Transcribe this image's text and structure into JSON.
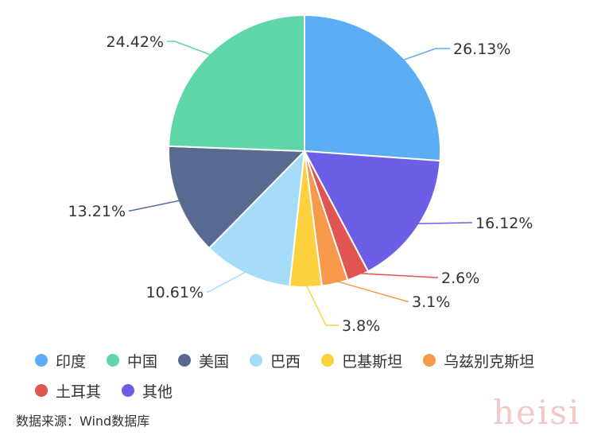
{
  "chart_data": {
    "type": "pie",
    "slices": [
      {
        "name": "印度",
        "value": 26.13,
        "label": "26.13%",
        "color": "#5badf4"
      },
      {
        "name": "其他",
        "value": 16.12,
        "label": "16.12%",
        "color": "#6c5fe6"
      },
      {
        "name": "土耳其",
        "value": 2.6,
        "label": "2.6%",
        "color": "#e05551"
      },
      {
        "name": "乌兹别克斯坦",
        "value": 3.1,
        "label": "3.1%",
        "color": "#f7984a"
      },
      {
        "name": "巴基斯坦",
        "value": 3.8,
        "label": "3.8%",
        "color": "#fcd13d"
      },
      {
        "name": "巴西",
        "value": 10.61,
        "label": "10.61%",
        "color": "#a5dcf7"
      },
      {
        "name": "美国",
        "value": 13.21,
        "label": "13.21%",
        "color": "#596a91"
      },
      {
        "name": "中国",
        "value": 24.42,
        "label": "24.42%",
        "color": "#5fd6a8"
      }
    ],
    "legend": {
      "placement": "bottom",
      "items": [
        {
          "name": "印度",
          "color": "#5badf4"
        },
        {
          "name": "中国",
          "color": "#5fd6a8"
        },
        {
          "name": "美国",
          "color": "#596a91"
        },
        {
          "name": "巴西",
          "color": "#a5dcf7"
        },
        {
          "name": "巴基斯坦",
          "color": "#fcd13d"
        },
        {
          "name": "乌兹别克斯坦",
          "color": "#f7984a"
        },
        {
          "name": "土耳其",
          "color": "#e05551"
        },
        {
          "name": "其他",
          "color": "#6c5fe6"
        }
      ]
    }
  },
  "source": "数据来源：Wind数据库",
  "watermark": "heisi"
}
